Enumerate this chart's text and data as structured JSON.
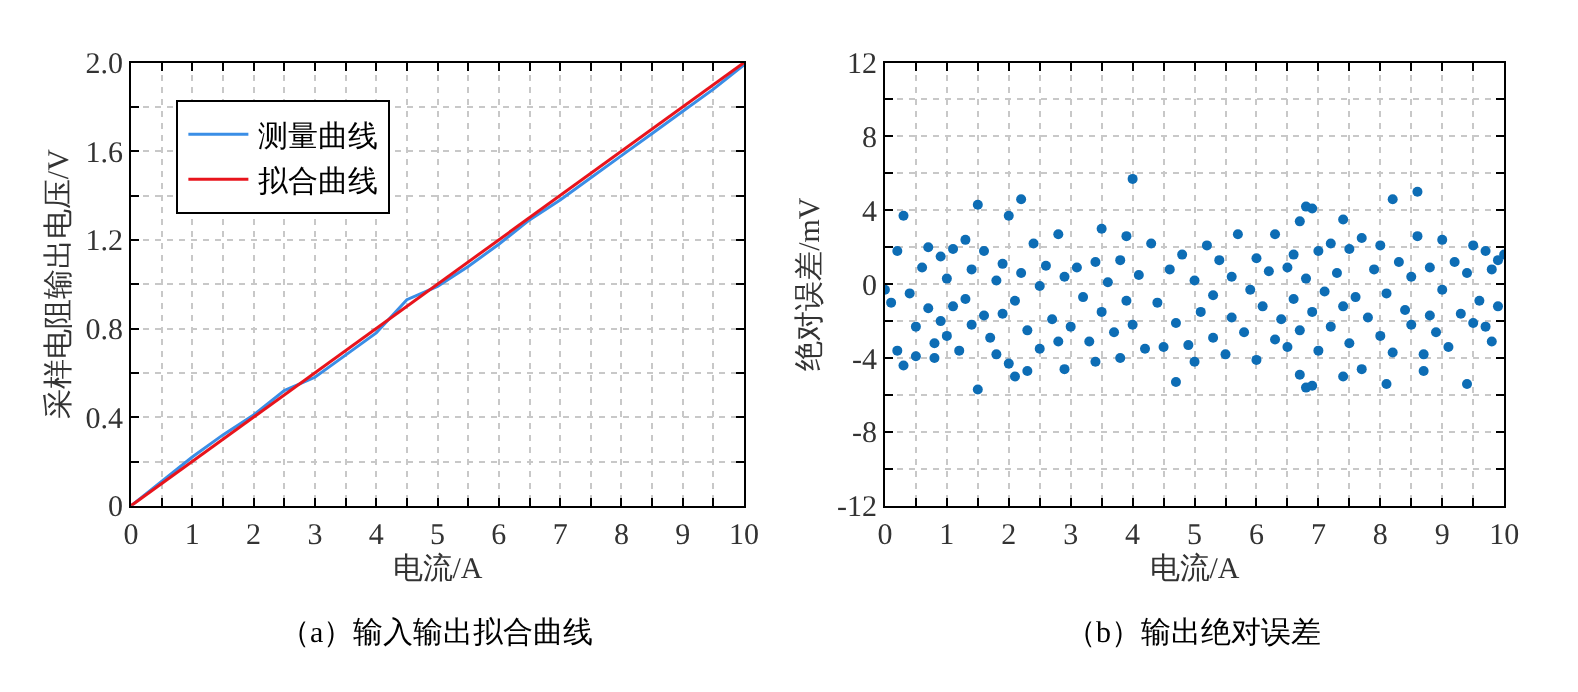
{
  "chart_data": [
    {
      "type": "line",
      "xlabel": "电流/A",
      "ylabel": "采样电阻输出电压/V",
      "annotations": [
        "（a）输入输出拟合曲线"
      ],
      "legend": "top left",
      "grid": true,
      "marker": "none",
      "line_style": "solid",
      "xlim": [
        0,
        10
      ],
      "ylim": [
        0,
        2.0
      ],
      "xticks": [
        0,
        {
          "value": 0.5,
          "label": null
        },
        1,
        {
          "value": 1.5,
          "label": null
        },
        2,
        {
          "value": 2.5,
          "label": null
        },
        3,
        {
          "value": 3.5,
          "label": null
        },
        4,
        {
          "value": 4.5,
          "label": null
        },
        5,
        {
          "value": 5.5,
          "label": null
        },
        6,
        {
          "value": 6.5,
          "label": null
        },
        7,
        {
          "value": 7.5,
          "label": null
        },
        8,
        {
          "value": 8.5,
          "label": null
        },
        9,
        {
          "value": 9.5,
          "label": null
        },
        10
      ],
      "yticks": [
        0,
        {
          "value": 0.2,
          "label": null
        },
        0.4,
        {
          "value": 0.6,
          "label": null
        },
        0.8,
        {
          "value": 1.0,
          "label": null
        },
        1.2,
        {
          "value": 1.4,
          "label": null
        },
        1.6,
        {
          "value": 1.8,
          "label": null
        },
        {
          "value": 2.0,
          "label": "2.0"
        }
      ],
      "series": [
        {
          "name": "测量曲线",
          "color": "#3a8ee6",
          "x": [
            0,
            1,
            1.5,
            2,
            2.5,
            3,
            3.5,
            4,
            4.5,
            5,
            5.5,
            6,
            6.5,
            7,
            7.5,
            8,
            8.5,
            9,
            9.5,
            10
          ],
          "values": [
            0,
            0.22,
            0.32,
            0.41,
            0.52,
            0.58,
            0.68,
            0.78,
            0.93,
            0.99,
            1.08,
            1.18,
            1.29,
            1.38,
            1.48,
            1.58,
            1.68,
            1.78,
            1.88,
            1.99
          ]
        },
        {
          "name": "拟合曲线",
          "color": "#e8141c",
          "x": [
            0,
            10
          ],
          "values": [
            0,
            2.0
          ]
        }
      ]
    },
    {
      "type": "scatter",
      "xlabel": "电流/A",
      "ylabel": "绝对误差/mV",
      "annotations": [
        "（b）输出绝对误差"
      ],
      "grid": true,
      "marker": "circle",
      "xlim": [
        0,
        10
      ],
      "ylim": [
        -12,
        12
      ],
      "xticks": [
        0,
        {
          "value": 0.5,
          "label": null
        },
        1,
        {
          "value": 1.5,
          "label": null
        },
        2,
        {
          "value": 2.5,
          "label": null
        },
        3,
        {
          "value": 3.5,
          "label": null
        },
        4,
        {
          "value": 4.5,
          "label": null
        },
        5,
        {
          "value": 5.5,
          "label": null
        },
        6,
        {
          "value": 6.5,
          "label": null
        },
        7,
        {
          "value": 7.5,
          "label": null
        },
        8,
        {
          "value": 8.5,
          "label": null
        },
        9,
        {
          "value": 9.5,
          "label": null
        },
        10
      ],
      "yticks": [
        -12,
        {
          "value": -10,
          "label": null
        },
        -8,
        {
          "value": -6,
          "label": null
        },
        -4,
        {
          "value": -2,
          "label": null
        },
        0,
        {
          "value": 2,
          "label": null
        },
        4,
        {
          "value": 6,
          "label": null
        },
        8,
        {
          "value": 10,
          "label": null
        },
        12
      ],
      "series": [
        {
          "color": "#0d6db5",
          "x": [
            0,
            0.2,
            0.2,
            0.3,
            0.3,
            1.5,
            1.5,
            2.2,
            2.0,
            2.1,
            2.3,
            3.5,
            3.9,
            4.0,
            4.7,
            6.7,
            6.8,
            6.9,
            6.8,
            6.9,
            6.7,
            7.4,
            7.4,
            8.2,
            8.1,
            8.6,
            8.7,
            9.4,
            10,
            9.8,
            0.1,
            0.4,
            0.5,
            0.5,
            0.6,
            0.7,
            0.7,
            0.8,
            0.8,
            0.9,
            0.9,
            1.0,
            1.0,
            1.1,
            1.1,
            1.2,
            1.3,
            1.3,
            1.4,
            1.4,
            1.6,
            1.6,
            1.7,
            1.8,
            1.8,
            1.9,
            1.9,
            2.0,
            2.1,
            2.2,
            2.3,
            2.4,
            2.5,
            2.5,
            2.6,
            2.7,
            2.8,
            2.8,
            2.9,
            2.9,
            3.0,
            3.1,
            3.2,
            3.3,
            3.4,
            3.4,
            3.5,
            3.6,
            3.7,
            3.8,
            3.8,
            3.9,
            4.0,
            4.1,
            4.2,
            4.3,
            4.4,
            4.5,
            4.6,
            4.7,
            4.8,
            4.9,
            5.0,
            5.0,
            5.1,
            5.2,
            5.3,
            5.3,
            5.4,
            5.5,
            5.6,
            5.6,
            5.7,
            5.8,
            5.9,
            6.0,
            6.0,
            6.1,
            6.2,
            6.3,
            6.3,
            6.4,
            6.5,
            6.5,
            6.6,
            6.6,
            6.7,
            6.8,
            6.9,
            7.0,
            7.0,
            7.1,
            7.2,
            7.2,
            7.3,
            7.4,
            7.5,
            7.5,
            7.6,
            7.7,
            7.7,
            7.8,
            7.9,
            8.0,
            8.0,
            8.1,
            8.2,
            8.3,
            8.4,
            8.5,
            8.5,
            8.6,
            8.7,
            8.8,
            8.8,
            8.9,
            9.0,
            9.0,
            9.1,
            9.2,
            9.3,
            9.4,
            9.5,
            9.5,
            9.6,
            9.7,
            9.7,
            9.8,
            9.9,
            9.9
          ],
          "values": [
            -0.3,
            1.8,
            -3.6,
            3.7,
            -4.4,
            4.3,
            -5.7,
            4.6,
            3.7,
            -5.0,
            -4.7,
            3.0,
            2.6,
            5.7,
            -5.3,
            3.4,
            4.2,
            4.1,
            -5.6,
            -5.5,
            -4.9,
            3.5,
            -5.0,
            4.6,
            -5.4,
            5.0,
            -4.7,
            -5.4,
            1.6,
            -3.1,
            -1.0,
            -0.5,
            -2.3,
            -3.9,
            0.9,
            -1.3,
            2.0,
            -3.2,
            -4.0,
            1.5,
            -2.0,
            0.3,
            -2.8,
            1.9,
            -1.2,
            -3.6,
            2.4,
            -0.8,
            0.8,
            -2.2,
            -1.7,
            1.8,
            -2.9,
            -3.8,
            0.2,
            1.1,
            -1.6,
            -4.3,
            -0.9,
            0.6,
            -2.5,
            2.2,
            -0.1,
            -3.5,
            1.0,
            -1.9,
            2.7,
            -3.1,
            -4.6,
            0.4,
            -2.3,
            0.9,
            -0.7,
            -3.1,
            1.2,
            -4.2,
            -1.5,
            0.1,
            -2.6,
            1.3,
            -4.0,
            -0.9,
            -2.2,
            0.5,
            -3.5,
            2.2,
            -1.0,
            -3.4,
            0.8,
            -2.1,
            1.6,
            -3.3,
            -4.2,
            0.2,
            -1.5,
            2.1,
            -0.6,
            -2.9,
            1.3,
            -3.8,
            0.4,
            -1.8,
            2.7,
            -2.6,
            -0.3,
            -4.1,
            1.4,
            -1.2,
            0.7,
            -3.0,
            2.7,
            -1.9,
            0.9,
            -3.4,
            1.6,
            -0.8,
            -2.5,
            0.3,
            -1.5,
            1.8,
            -3.6,
            -0.4,
            2.2,
            -2.3,
            0.6,
            -1.2,
            1.9,
            -3.2,
            -0.7,
            2.5,
            -4.6,
            -1.8,
            0.8,
            -2.8,
            2.1,
            -0.5,
            -3.7,
            1.2,
            -1.4,
            0.4,
            -2.2,
            2.6,
            -3.8,
            0.9,
            -1.7,
            -2.6,
            2.4,
            -0.3,
            -3.4,
            1.2,
            -1.6,
            0.6,
            -2.1,
            2.1,
            -0.9,
            1.8,
            -2.3,
            0.8,
            -1.2,
            1.3
          ]
        }
      ]
    }
  ]
}
